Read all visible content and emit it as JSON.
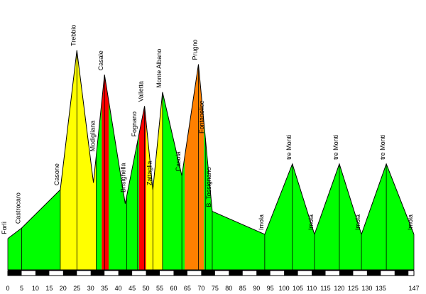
{
  "chart_data": {
    "type": "area",
    "title": "",
    "xlabel": "",
    "ylabel": "",
    "xlim": [
      0,
      147
    ],
    "x_tick_labels": [
      "0",
      "5",
      "10",
      "15",
      "20",
      "25",
      "30",
      "35",
      "40",
      "45",
      "50",
      "55",
      "60",
      "65",
      "70",
      "75",
      "80",
      "85",
      "90",
      "95",
      "100",
      "105",
      "110",
      "115",
      "120",
      "125",
      "130",
      "135",
      "147"
    ],
    "profile": [
      {
        "km": 0,
        "alt": 45
      },
      {
        "km": 5,
        "alt": 60
      },
      {
        "km": 19,
        "alt": 115
      },
      {
        "km": 25,
        "alt": 315
      },
      {
        "km": 31,
        "alt": 125
      },
      {
        "km": 35,
        "alt": 280
      },
      {
        "km": 42.5,
        "alt": 95
      },
      {
        "km": 49.5,
        "alt": 235
      },
      {
        "km": 52.5,
        "alt": 115
      },
      {
        "km": 56,
        "alt": 255
      },
      {
        "km": 63,
        "alt": 135
      },
      {
        "km": 69,
        "alt": 295
      },
      {
        "km": 74,
        "alt": 84
      },
      {
        "km": 93,
        "alt": 51
      },
      {
        "km": 103,
        "alt": 152
      },
      {
        "km": 111,
        "alt": 51
      },
      {
        "km": 120,
        "alt": 152
      },
      {
        "km": 128,
        "alt": 51
      },
      {
        "km": 137,
        "alt": 152
      },
      {
        "km": 147,
        "alt": 51
      }
    ],
    "segments": [
      {
        "from": 0,
        "to": 19,
        "color": "#00ff00"
      },
      {
        "from": 19,
        "to": 25,
        "color": "#ffff00"
      },
      {
        "from": 25,
        "to": 32,
        "color": "#ffff00"
      },
      {
        "from": 32,
        "to": 34,
        "color": "#00ff00"
      },
      {
        "from": 34,
        "to": 36.5,
        "color": "#ff0000"
      },
      {
        "from": 36.5,
        "to": 43,
        "color": "#00ff00"
      },
      {
        "from": 43,
        "to": 47.5,
        "color": "#00ff00"
      },
      {
        "from": 47.5,
        "to": 50,
        "color": "#ff0000"
      },
      {
        "from": 50,
        "to": 56,
        "color": "#ffff00"
      },
      {
        "from": 56,
        "to": 64,
        "color": "#00ff00"
      },
      {
        "from": 64,
        "to": 69,
        "color": "#ff8000"
      },
      {
        "from": 69,
        "to": 71,
        "color": "#ff8000"
      },
      {
        "from": 71,
        "to": 74,
        "color": "#00ff00"
      },
      {
        "from": 74,
        "to": 147,
        "color": "#00ff00"
      }
    ],
    "places": [
      {
        "name": "Forlì",
        "km": 0
      },
      {
        "name": "Castrocaro",
        "km": 5
      },
      {
        "name": "Casone",
        "km": 19
      },
      {
        "name": "Trebbio",
        "km": 25
      },
      {
        "name": "Modigliana",
        "km": 32
      },
      {
        "name": "Casale",
        "km": 35
      },
      {
        "name": "Brisighella",
        "km": 43
      },
      {
        "name": "Valletta",
        "km": 49.5
      },
      {
        "name": "Fognano",
        "km": 47
      },
      {
        "name": "Zattaglia",
        "km": 52.5
      },
      {
        "name": "Monte Albano",
        "km": 56
      },
      {
        "name": "Casola",
        "km": 63
      },
      {
        "name": "Prugno",
        "km": 69
      },
      {
        "name": "Fontanelice",
        "km": 71.5
      },
      {
        "name": "B. Tossignano",
        "km": 74
      },
      {
        "name": "Imola",
        "km": 93
      },
      {
        "name": "tre Monti",
        "km": 103
      },
      {
        "name": "Imola",
        "km": 111
      },
      {
        "name": "tre Monti",
        "km": 120
      },
      {
        "name": "Imola",
        "km": 128
      },
      {
        "name": "tre Monti",
        "km": 137
      },
      {
        "name": "Imola",
        "km": 147
      }
    ],
    "colors": {
      "flat": "#00ff00",
      "medium": "#ffff00",
      "hard": "#ff0000",
      "very_hard": "#ff8000"
    }
  }
}
